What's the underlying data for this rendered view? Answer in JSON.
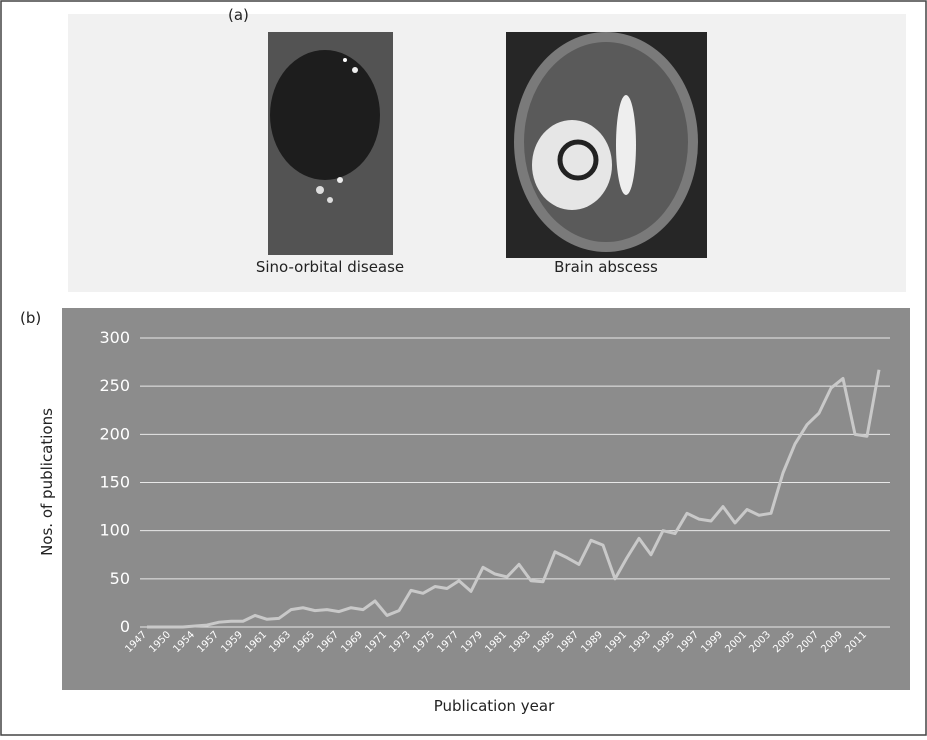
{
  "panel_a": {
    "label": "(a)",
    "images": [
      {
        "caption": "Sino-orbital disease"
      },
      {
        "caption": "Brain abscess"
      }
    ]
  },
  "chart_data": {
    "type": "line",
    "panel_label": "(b)",
    "x_label": "Publication year",
    "y_label": "Nos. of publications",
    "categories": [
      "1947",
      null,
      "1950",
      null,
      "1954",
      null,
      "1957",
      null,
      "1959",
      null,
      "1961",
      null,
      "1963",
      null,
      "1965",
      null,
      "1967",
      null,
      "1969",
      null,
      "1971",
      null,
      "1973",
      null,
      "1975",
      null,
      "1977",
      null,
      "1979",
      null,
      "1981",
      null,
      "1983",
      null,
      "1985",
      null,
      "1987",
      null,
      "1989",
      null,
      "1991",
      null,
      "1993",
      null,
      "1995",
      null,
      "1997",
      null,
      "1999",
      null,
      "2001",
      null,
      "2003",
      null,
      "2005",
      null,
      "2007",
      null,
      "2009",
      null,
      "2011",
      null
    ],
    "series": [
      {
        "color": "#c9c9c9",
        "values": [
          0,
          0,
          0,
          0,
          1,
          2,
          5,
          6,
          6,
          12,
          8,
          9,
          18,
          20,
          17,
          18,
          16,
          20,
          18,
          27,
          12,
          17,
          38,
          35,
          42,
          40,
          48,
          37,
          62,
          55,
          52,
          65,
          48,
          47,
          78,
          72,
          65,
          90,
          85,
          50,
          72,
          92,
          75,
          100,
          97,
          118,
          112,
          110,
          125,
          108,
          122,
          116,
          118,
          160,
          190,
          210,
          222,
          248,
          258,
          200,
          198,
          267
        ]
      }
    ],
    "ylim": [
      0,
      300
    ],
    "yticks": [
      0,
      50,
      100,
      150,
      200,
      250,
      300
    ],
    "grid": true
  }
}
